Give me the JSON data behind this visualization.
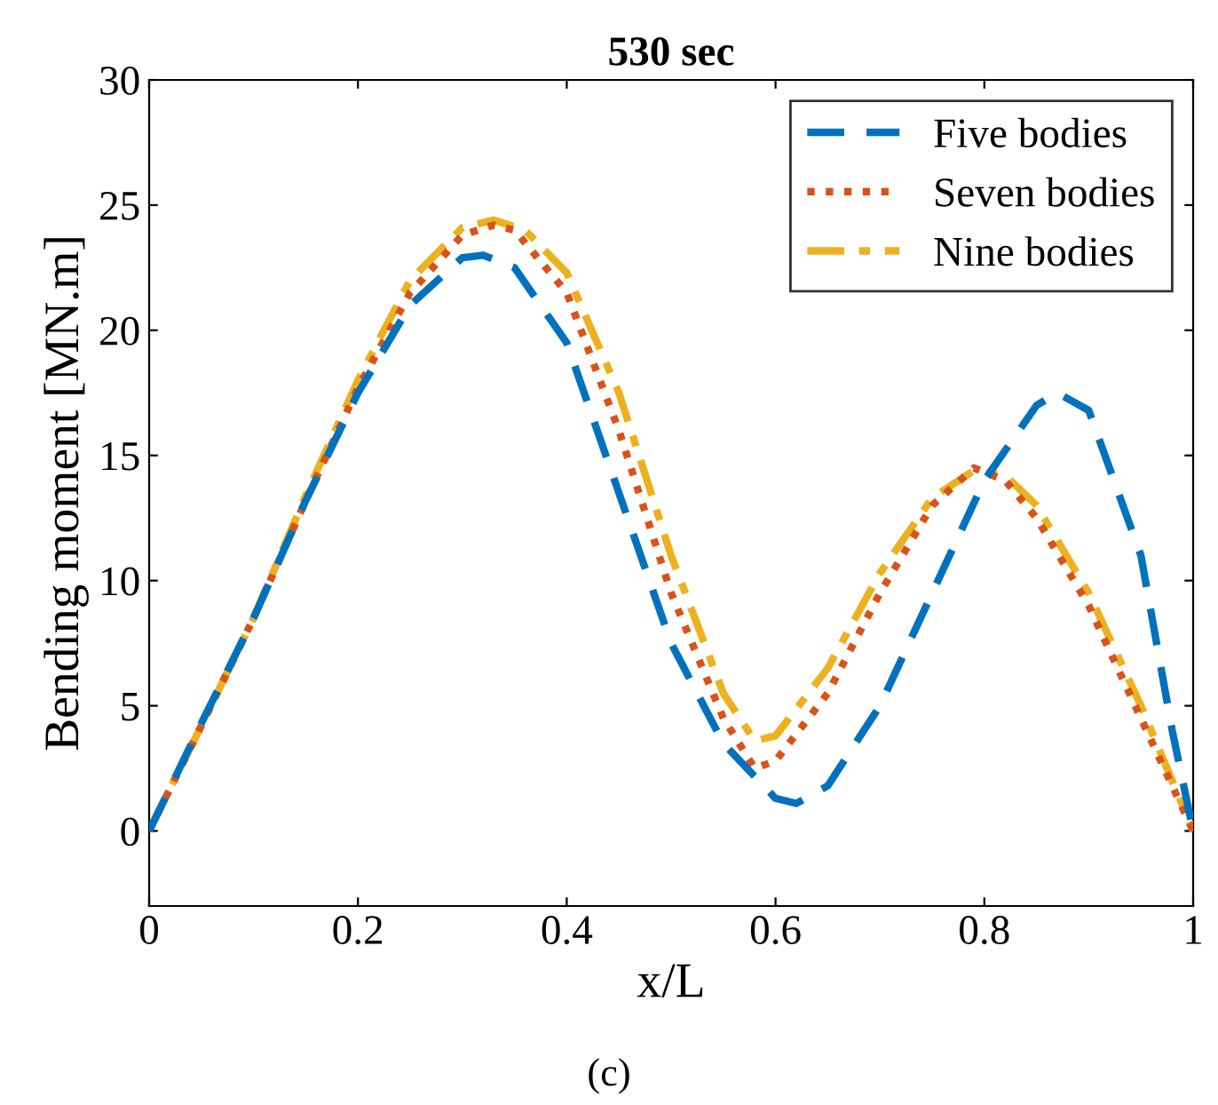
{
  "chart_data": {
    "type": "line",
    "title": "530 sec",
    "xlabel": "x/L",
    "ylabel": "Bending moment [MN.m]",
    "annotations": [
      "(c)"
    ],
    "xlim": [
      0,
      1
    ],
    "ylim": [
      -3,
      30
    ],
    "xticks": [
      0,
      0.2,
      0.4,
      0.6,
      0.8,
      1
    ],
    "yticks": [
      0,
      5,
      10,
      15,
      20,
      25,
      30
    ],
    "grid": false,
    "legend": "top right",
    "series": [
      {
        "name": "Five bodies",
        "color": "#0072bd",
        "line_style": "dashed",
        "x": [
          0,
          0.05,
          0.1,
          0.15,
          0.2,
          0.25,
          0.3,
          0.32,
          0.35,
          0.4,
          0.45,
          0.5,
          0.55,
          0.6,
          0.62,
          0.65,
          0.7,
          0.75,
          0.8,
          0.85,
          0.87,
          0.9,
          0.95,
          0.98,
          1
        ],
        "values": [
          0,
          4.3,
          8.5,
          13.2,
          17.5,
          21,
          22.9,
          23,
          22.5,
          19.5,
          13.5,
          7.5,
          3.5,
          1.3,
          1.1,
          1.8,
          5,
          9.5,
          14,
          17,
          17.5,
          16.8,
          11,
          4,
          0
        ]
      },
      {
        "name": "Seven bodies",
        "color": "#d95319",
        "line_style": "dotted",
        "x": [
          0,
          0.05,
          0.1,
          0.15,
          0.2,
          0.25,
          0.3,
          0.33,
          0.35,
          0.4,
          0.45,
          0.5,
          0.55,
          0.58,
          0.6,
          0.65,
          0.7,
          0.75,
          0.79,
          0.82,
          0.85,
          0.9,
          0.95,
          1
        ],
        "values": [
          0,
          4.2,
          8.5,
          13.2,
          17.7,
          21.5,
          23.8,
          24.2,
          24,
          21.5,
          16,
          9.5,
          4.5,
          2.5,
          2.8,
          5.5,
          9.5,
          13,
          14.5,
          14,
          12.5,
          9,
          4.5,
          0
        ]
      },
      {
        "name": "Nine bodies",
        "color": "#edb120",
        "line_style": "dashdot",
        "x": [
          0,
          0.05,
          0.1,
          0.15,
          0.2,
          0.25,
          0.3,
          0.33,
          0.36,
          0.4,
          0.45,
          0.5,
          0.55,
          0.58,
          0.6,
          0.65,
          0.7,
          0.75,
          0.79,
          0.82,
          0.85,
          0.9,
          0.95,
          1
        ],
        "values": [
          0,
          4.2,
          8.5,
          13.4,
          18,
          22,
          24.1,
          24.4,
          24,
          22.3,
          17.5,
          11,
          5.5,
          3.6,
          3.8,
          6.5,
          10.3,
          13.3,
          14.4,
          14.2,
          13,
          9.5,
          5,
          0
        ]
      }
    ]
  }
}
